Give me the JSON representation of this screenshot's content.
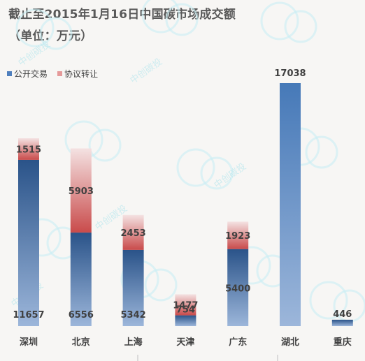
{
  "title_line1": "截止至2015年1月16日中国碳市场成交额",
  "title_line2": "（单位：万元）",
  "watermark_text": "中创碳投",
  "colors": {
    "open_top": "#2a5389",
    "open_bottom": "#9cb6da",
    "agreement_top": "#f4e2e2",
    "agreement_bottom": "#c94b4b",
    "legend_open": "#4f7fbd",
    "legend_agreement": "#e59a9a",
    "background": "#f7f6f4"
  },
  "chart_data": {
    "type": "bar",
    "stacked": true,
    "title": "截止至2015年1月16日中国碳市场成交额（单位：万元）",
    "categories": [
      "深圳",
      "北京",
      "上海",
      "天津",
      "广东",
      "湖北",
      "重庆"
    ],
    "series": [
      {
        "name": "公开交易",
        "values": [
          11657,
          6556,
          5342,
          754,
          5400,
          17038,
          446
        ]
      },
      {
        "name": "协议转让",
        "values": [
          1515,
          5903,
          2453,
          1477,
          1923,
          0,
          0
        ]
      }
    ],
    "ylim": [
      0,
      17038
    ],
    "legend": "top-left",
    "grid": false
  }
}
